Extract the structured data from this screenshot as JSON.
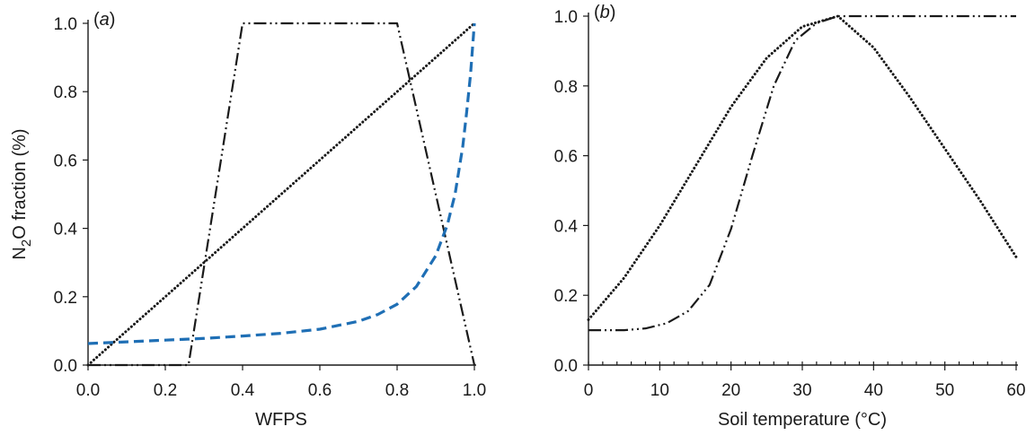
{
  "chart_data": [
    {
      "type": "line",
      "panel_label": "(a)",
      "xlabel": "WFPS",
      "ylabel": "N2O fraction (%)",
      "xlim": [
        0,
        1
      ],
      "ylim": [
        0,
        1
      ],
      "xticks": [
        "0.0",
        "0.2",
        "0.4",
        "0.6",
        "0.8",
        "1.0"
      ],
      "yticks": [
        "0.0",
        "0.2",
        "0.4",
        "0.6",
        "0.8",
        "1.0"
      ],
      "grid": false,
      "legend": "none",
      "series": [
        {
          "style": "dash-dot-dot",
          "color": "#1a1a1a",
          "x": [
            0,
            0.26,
            0.4,
            0.8,
            1.0
          ],
          "y": [
            0,
            0,
            1.0,
            1.0,
            0
          ]
        },
        {
          "style": "dotted",
          "color": "#1a1a1a",
          "x": [
            0,
            1.0
          ],
          "y": [
            0,
            1.0
          ]
        },
        {
          "style": "dashed",
          "color": "#1f6fb5",
          "x": [
            0,
            0.1,
            0.2,
            0.3,
            0.4,
            0.5,
            0.6,
            0.7,
            0.75,
            0.8,
            0.85,
            0.9,
            0.93,
            0.95,
            0.97,
            0.98,
            0.99,
            1.0
          ],
          "y": [
            0.063,
            0.068,
            0.073,
            0.078,
            0.085,
            0.093,
            0.105,
            0.128,
            0.148,
            0.178,
            0.23,
            0.32,
            0.41,
            0.5,
            0.64,
            0.74,
            0.85,
            1.0
          ]
        }
      ]
    },
    {
      "type": "line",
      "panel_label": "(b)",
      "xlabel": "Soil temperature (°C)",
      "ylabel": "",
      "xlim": [
        0,
        60
      ],
      "ylim": [
        0,
        1
      ],
      "xticks": [
        "0",
        "10",
        "20",
        "30",
        "40",
        "50",
        "60"
      ],
      "yticks": [
        "0.0",
        "0.2",
        "0.4",
        "0.6",
        "0.8",
        "1.0"
      ],
      "grid": false,
      "legend": "none",
      "series": [
        {
          "style": "dotted",
          "color": "#1a1a1a",
          "x": [
            0,
            5,
            10,
            15,
            20,
            25,
            30,
            35,
            40,
            45,
            50,
            55,
            60
          ],
          "y": [
            0.13,
            0.25,
            0.4,
            0.57,
            0.74,
            0.88,
            0.97,
            1.0,
            0.91,
            0.77,
            0.62,
            0.47,
            0.31
          ]
        },
        {
          "style": "dash-dot-dot",
          "color": "#1a1a1a",
          "x": [
            0,
            5,
            8,
            11,
            14,
            17,
            20,
            23,
            26,
            29,
            32,
            35,
            40,
            50,
            60
          ],
          "y": [
            0.1,
            0.1,
            0.105,
            0.12,
            0.155,
            0.23,
            0.39,
            0.6,
            0.8,
            0.93,
            0.98,
            1.0,
            1.0,
            1.0,
            1.0
          ]
        }
      ]
    }
  ]
}
